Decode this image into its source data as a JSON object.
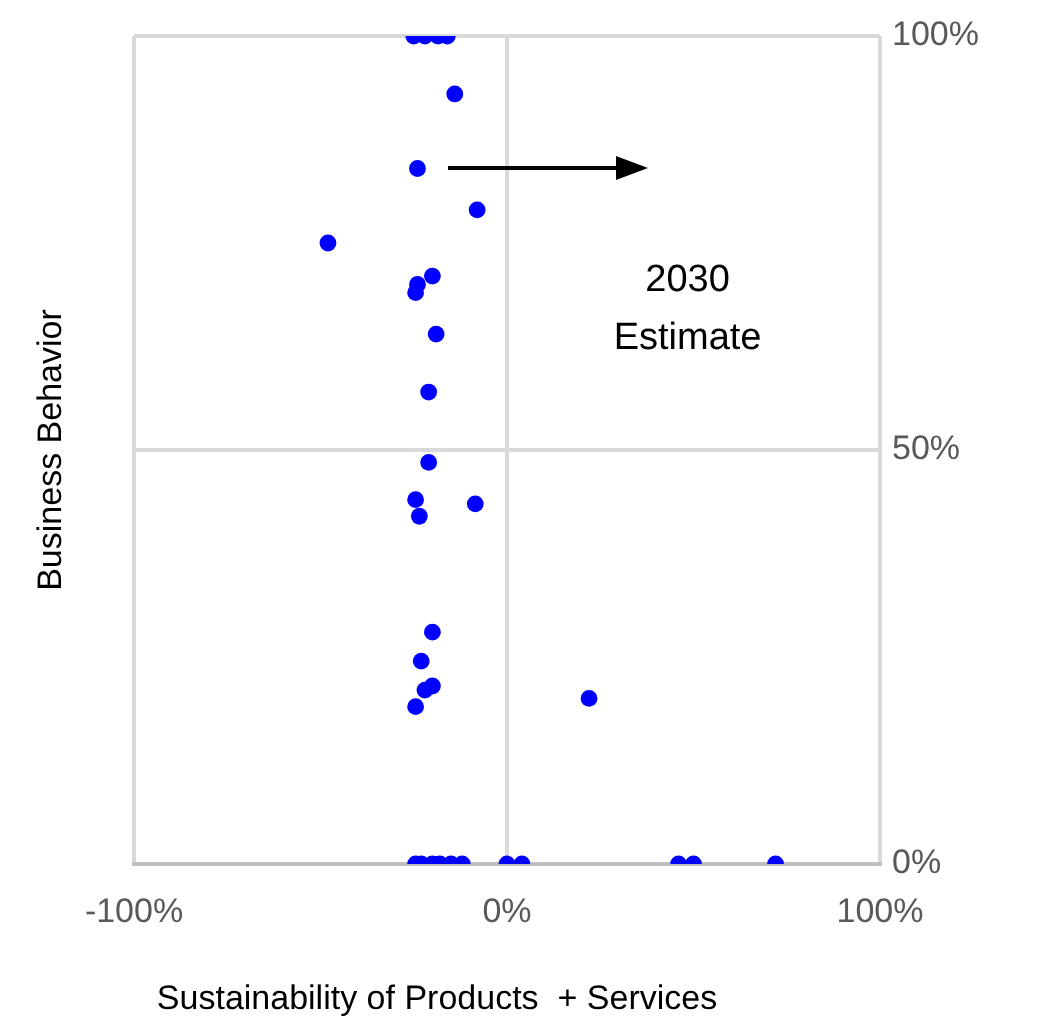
{
  "chart_data": {
    "type": "scatter",
    "xlabel": "Sustainability of Products  + Services",
    "ylabel": "Business Behavior",
    "annotations": [
      "2030 Estimate"
    ],
    "x": [
      -25,
      -22,
      -18.5,
      -16,
      -14,
      -24,
      -8,
      -48,
      -20,
      -24,
      -24.5,
      -19,
      -21,
      -21,
      -24.5,
      -8.5,
      -23.5,
      -20,
      -23,
      -20,
      -22,
      -24.5,
      22,
      -24.5,
      -23,
      -20,
      -18,
      -15,
      -12,
      0,
      4,
      46,
      50,
      72
    ],
    "series": [
      {
        "color": "#0000ff",
        "values": [
          100,
          100,
          100,
          100,
          93,
          84,
          79,
          75,
          71,
          70,
          69,
          64,
          57,
          48.5,
          44,
          43.5,
          42,
          28,
          24.5,
          21.5,
          21,
          19,
          20,
          0,
          0,
          0,
          0,
          0,
          0,
          0,
          0,
          0,
          0,
          0
        ]
      }
    ],
    "xlim": [
      -100,
      100
    ],
    "xticks": [
      {
        "value": -100,
        "label": "-100%"
      },
      {
        "value": 0,
        "label": "0%"
      },
      {
        "value": 100,
        "label": "100%"
      }
    ],
    "ylim": [
      0,
      100
    ],
    "yticks": [
      {
        "value": 0,
        "label": "0%"
      },
      {
        "value": 50,
        "label": "50%"
      },
      {
        "value": 100,
        "label": "100%"
      }
    ],
    "grid": true,
    "marker": "circle",
    "legend": false
  }
}
